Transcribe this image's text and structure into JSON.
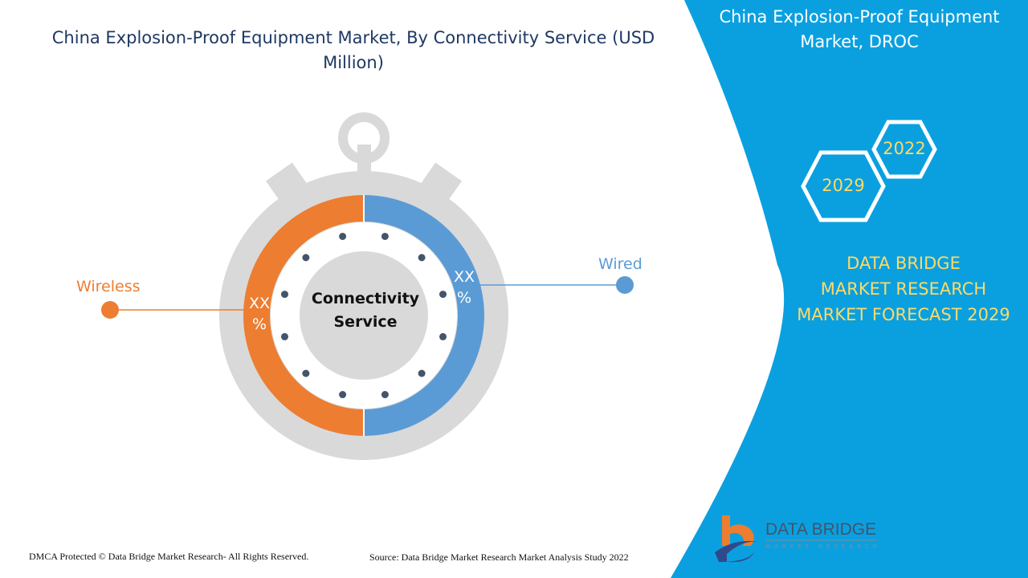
{
  "title": "China Explosion-Proof Equipment Market, By Connectivity Service (USD Million)",
  "center_label": "Connectivity Service",
  "segments": [
    {
      "name": "Wireless",
      "value_label": "XX %",
      "color": "#ed7d31"
    },
    {
      "name": "Wired",
      "value_label": "XX %",
      "color": "#5b9bd5"
    }
  ],
  "right_panel": {
    "title": "China Explosion-Proof Equipment Market, DROC",
    "years": [
      "2022",
      "2029"
    ],
    "brand_line1": "DATA BRIDGE MARKET RESEARCH",
    "brand_line2": "MARKET FORECAST 2029",
    "background": "#0aa0e0",
    "accent": "#ffd966"
  },
  "logo": {
    "name": "DATA BRIDGE",
    "sub": "MARKET RESEARCH"
  },
  "footer": {
    "copyright": "DMCA Protected © Data Bridge Market Research- All Rights Reserved.",
    "source": "Source: Data Bridge Market Research Market Analysis Study 2022"
  }
}
